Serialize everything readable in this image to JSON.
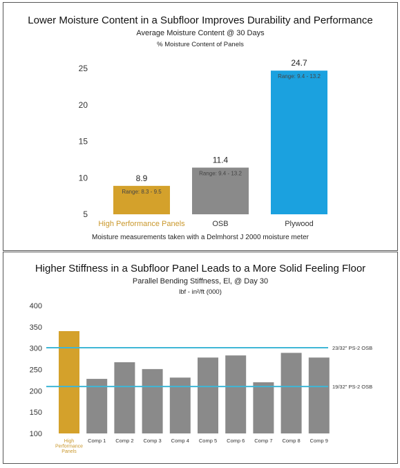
{
  "colors": {
    "gold": "#D4A12B",
    "gray": "#8A8A8A",
    "blue": "#1BA1DF",
    "reference_line": "#3EB6D6",
    "axis_text": "#333333"
  },
  "chart_data": [
    {
      "type": "bar",
      "title": "Lower Moisture Content in a Subfloor Improves Durability and Performance",
      "subtitle": "Average Moisture Content @ 30 Days",
      "unit_label": "% Moisture Content of Panels",
      "categories": [
        "High Performance Panels",
        "OSB",
        "Plywood"
      ],
      "values": [
        8.9,
        11.4,
        24.7
      ],
      "value_labels": [
        "8.9",
        "11.4",
        "24.7"
      ],
      "range_labels": [
        "Range: 8.3 - 9.5",
        "Range: 9.4 - 13.2",
        "Range: 9.4 - 13.2"
      ],
      "bar_colors": [
        "#D4A12B",
        "#8A8A8A",
        "#1BA1DF"
      ],
      "category_colors": [
        "#C9972B",
        "#333333",
        "#333333"
      ],
      "yticks": [
        "5",
        "10",
        "15",
        "20",
        "25"
      ],
      "ylim": [
        5,
        25
      ],
      "footnote": "Moisture measurements taken with a Delmhorst J 2000 moisture meter",
      "grid": false
    },
    {
      "type": "bar",
      "title": "Higher Stiffness in a Subfloor Panel Leads to a More Solid Feeling Floor",
      "subtitle": "Parallel Bending Stiffness, El, @ Day 30",
      "unit_label": "lbf - in²/ft (000)",
      "categories": [
        "High Performance Panels",
        "Comp 1",
        "Comp 2",
        "Comp 3",
        "Comp 4",
        "Comp 5",
        "Comp 6",
        "Comp 7",
        "Comp 8",
        "Comp 9"
      ],
      "category_label_lines": [
        [
          "High",
          "Performance",
          "Panels"
        ],
        [
          "Comp 1"
        ],
        [
          "Comp 2"
        ],
        [
          "Comp 3"
        ],
        [
          "Comp 4"
        ],
        [
          "Comp 5"
        ],
        [
          "Comp 6"
        ],
        [
          "Comp 7"
        ],
        [
          "Comp 8"
        ],
        [
          "Comp 9"
        ]
      ],
      "values": [
        340,
        228,
        267,
        251,
        231,
        278,
        283,
        220,
        289,
        278
      ],
      "bar_colors": [
        "#D4A12B",
        "#8A8A8A",
        "#8A8A8A",
        "#8A8A8A",
        "#8A8A8A",
        "#8A8A8A",
        "#8A8A8A",
        "#8A8A8A",
        "#8A8A8A",
        "#8A8A8A"
      ],
      "category_colors": [
        "#C9972B",
        "#333333",
        "#333333",
        "#333333",
        "#333333",
        "#333333",
        "#333333",
        "#333333",
        "#333333",
        "#333333"
      ],
      "yticks": [
        "100",
        "150",
        "200",
        "250",
        "300",
        "350",
        "400"
      ],
      "ylim": [
        100,
        400
      ],
      "reference_lines": [
        {
          "value": 301,
          "label": "23/32\" PS-2 OSB"
        },
        {
          "value": 210,
          "label": "19/32\" PS-2 OSB"
        }
      ],
      "grid": false
    }
  ]
}
